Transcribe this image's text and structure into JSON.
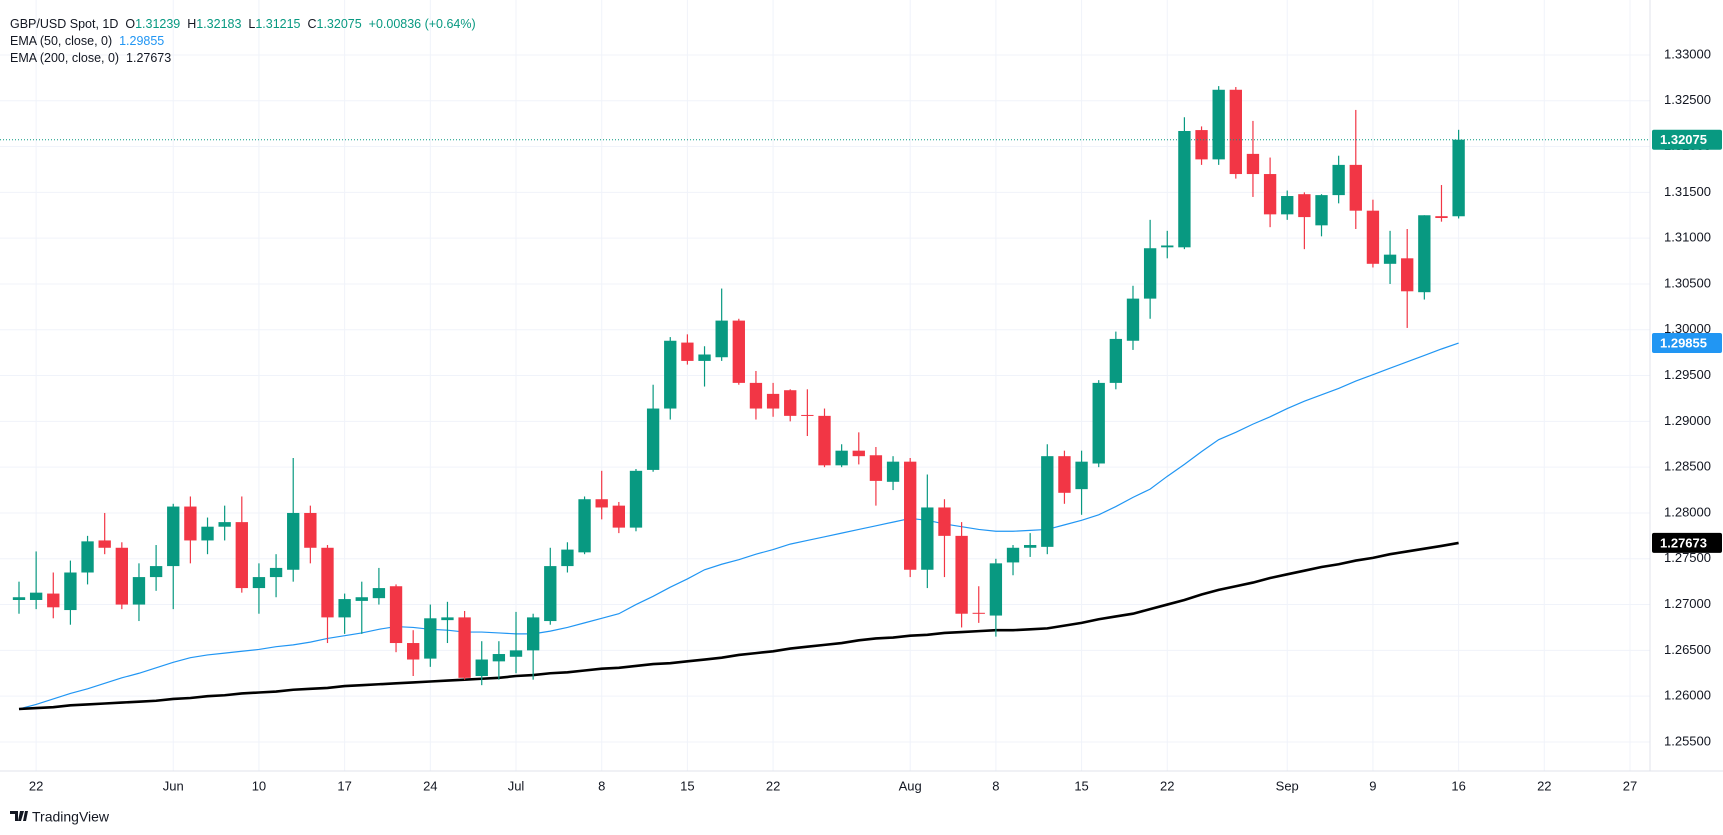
{
  "chart_data": {
    "type": "candlestick",
    "title": "GBP/USD Spot, 1D",
    "ohlc_letters": [
      "O",
      "H",
      "L",
      "C"
    ],
    "change": "+0.00836 (+0.64%)",
    "watermark": "TradingView",
    "up_color": "#089981",
    "down_color": "#f23645",
    "grid": true,
    "categories": [
      null,
      "22",
      null,
      null,
      null,
      null,
      null,
      null,
      null,
      "Jun",
      null,
      null,
      null,
      null,
      "10",
      null,
      null,
      null,
      null,
      "17",
      null,
      null,
      null,
      null,
      "24",
      null,
      null,
      null,
      null,
      "Jul",
      null,
      null,
      null,
      null,
      "8",
      null,
      null,
      null,
      null,
      "15",
      null,
      null,
      null,
      null,
      "22",
      null,
      null,
      null,
      null,
      null,
      null,
      null,
      "Aug",
      null,
      null,
      null,
      null,
      "8",
      null,
      null,
      null,
      null,
      "15",
      null,
      null,
      null,
      null,
      "22",
      null,
      null,
      null,
      null,
      null,
      null,
      "Sep",
      null,
      null,
      null,
      null,
      "9",
      null,
      null,
      null,
      null,
      "16",
      null,
      null,
      null,
      null,
      "22",
      null,
      null,
      null,
      null,
      "27"
    ],
    "open": [
      1.2705,
      1.2705,
      1.2712,
      1.2694,
      1.2735,
      1.277,
      1.2762,
      1.27,
      1.273,
      1.2742,
      1.2807,
      1.277,
      1.2785,
      1.279,
      1.2718,
      1.273,
      1.2738,
      1.28,
      1.2762,
      1.2686,
      1.2704,
      1.2707,
      1.272,
      1.2658,
      1.2641,
      1.2683,
      1.2686,
      1.2622,
      1.2638,
      1.2643,
      1.265,
      1.2682,
      1.2742,
      1.2757,
      1.2815,
      1.2808,
      1.2784,
      1.2847,
      1.2914,
      1.2986,
      1.2966,
      1.297,
      1.301,
      1.2942,
      1.293,
      1.2934,
      1.2907,
      1.2906,
      1.2852,
      1.2868,
      1.2863,
      1.2834,
      1.2856,
      1.2738,
      1.2806,
      1.2775,
      1.2691,
      1.2688,
      1.2746,
      1.2762,
      1.2763,
      1.2862,
      1.2826,
      1.2854,
      1.2942,
      1.2988,
      1.3034,
      1.309,
      1.309,
      1.3218,
      1.3186,
      1.3262,
      1.3192,
      1.317,
      1.3126,
      1.3148,
      1.3114,
      1.3147,
      1.318,
      1.313,
      1.3072,
      1.3078,
      1.3041,
      1.3124,
      1.31239,
      null,
      null,
      null,
      null,
      null,
      null,
      null,
      null,
      null,
      null
    ],
    "high": [
      1.2725,
      1.2758,
      1.2735,
      1.2748,
      1.2775,
      1.28,
      1.2768,
      1.2745,
      1.2765,
      1.281,
      1.2818,
      1.2795,
      1.2808,
      1.2818,
      1.2745,
      1.2755,
      1.286,
      1.2808,
      1.2765,
      1.2712,
      1.2725,
      1.274,
      1.2722,
      1.2672,
      1.27,
      1.2703,
      1.2693,
      1.266,
      1.266,
      1.2692,
      1.269,
      1.2762,
      1.2768,
      1.2818,
      1.2846,
      1.2812,
      1.2848,
      1.294,
      1.2992,
      1.2995,
      1.2982,
      1.3045,
      1.3012,
      1.2955,
      1.2942,
      1.2935,
      1.2935,
      1.2914,
      1.2875,
      1.2888,
      1.2872,
      1.2862,
      1.286,
      1.2842,
      1.2815,
      1.279,
      1.272,
      1.275,
      1.2765,
      1.2778,
      1.2875,
      1.2868,
      1.2868,
      1.2945,
      1.2998,
      1.3048,
      1.312,
      1.3108,
      1.3232,
      1.3222,
      1.3266,
      1.3265,
      1.3228,
      1.3188,
      1.3152,
      1.315,
      1.3148,
      1.319,
      1.324,
      1.3142,
      1.3108,
      1.311,
      1.3125,
      1.3158,
      1.32183,
      null,
      null,
      null,
      null,
      null,
      null,
      null,
      null,
      null,
      null
    ],
    "low": [
      1.269,
      1.2695,
      1.2685,
      1.2678,
      1.2722,
      1.2755,
      1.2695,
      1.2682,
      1.2715,
      1.2695,
      1.2745,
      1.2755,
      1.277,
      1.2713,
      1.269,
      1.2708,
      1.2725,
      1.2745,
      1.2658,
      1.2668,
      1.2668,
      1.27,
      1.2648,
      1.2622,
      1.2632,
      1.2658,
      1.2618,
      1.2612,
      1.2618,
      1.2625,
      1.2618,
      1.2678,
      1.2735,
      1.2755,
      1.2793,
      1.2778,
      1.278,
      1.2845,
      1.2902,
      1.2962,
      1.2938,
      1.2966,
      1.294,
      1.2902,
      1.2905,
      1.29,
      1.2884,
      1.285,
      1.285,
      1.2853,
      1.2808,
      1.2825,
      1.273,
      1.2718,
      1.273,
      1.2675,
      1.268,
      1.2665,
      1.2732,
      1.2752,
      1.2755,
      1.281,
      1.2798,
      1.285,
      1.2935,
      1.2978,
      1.3012,
      1.3078,
      1.3088,
      1.318,
      1.318,
      1.3165,
      1.3145,
      1.3112,
      1.312,
      1.3088,
      1.3102,
      1.3138,
      1.311,
      1.3068,
      1.305,
      1.3002,
      1.3033,
      1.3118,
      1.31215,
      null,
      null,
      null,
      null,
      null,
      null,
      null,
      null,
      null,
      null
    ],
    "close": [
      1.2708,
      1.2713,
      1.2697,
      1.2735,
      1.2769,
      1.2762,
      1.27,
      1.273,
      1.2742,
      1.2807,
      1.277,
      1.2785,
      1.279,
      1.2718,
      1.273,
      1.274,
      1.28,
      1.2762,
      1.2686,
      1.2706,
      1.2708,
      1.2718,
      1.2658,
      1.264,
      1.2685,
      1.2686,
      1.262,
      1.264,
      1.2646,
      1.265,
      1.2686,
      1.2742,
      1.276,
      1.2815,
      1.2806,
      1.2784,
      1.2846,
      1.2914,
      1.2988,
      1.2966,
      1.2973,
      1.301,
      1.2942,
      1.2914,
      1.2914,
      1.2906,
      1.2906,
      1.2852,
      1.2868,
      1.2862,
      1.2835,
      1.2856,
      1.2738,
      1.2806,
      1.2775,
      1.269,
      1.269,
      1.2745,
      1.2762,
      1.2765,
      1.2862,
      1.2822,
      1.2856,
      1.2942,
      1.299,
      1.3034,
      1.3089,
      1.3092,
      1.3217,
      1.3186,
      1.3262,
      1.317,
      1.317,
      1.3126,
      1.3146,
      1.3123,
      1.3147,
      1.318,
      1.313,
      1.3072,
      1.3082,
      1.3042,
      1.3125,
      1.3122,
      1.32075,
      null,
      null,
      null,
      null,
      null,
      null,
      null,
      null,
      null,
      null
    ],
    "lines": [
      {
        "name": "EMA (50, close, 0)",
        "color": "#2196f3",
        "width": 1.2,
        "values": [
          1.2586,
          1.2591,
          1.2597,
          1.2603,
          1.2608,
          1.2614,
          1.262,
          1.2625,
          1.2631,
          1.2637,
          1.2642,
          1.2645,
          1.2647,
          1.2649,
          1.2651,
          1.2654,
          1.2656,
          1.2659,
          1.2663,
          1.2666,
          1.2669,
          1.2673,
          1.2676,
          1.2675,
          1.2673,
          1.2672,
          1.267,
          1.267,
          1.2669,
          1.2668,
          1.2668,
          1.2671,
          1.2675,
          1.268,
          1.2685,
          1.269,
          1.27,
          1.2709,
          1.2719,
          1.2728,
          1.2738,
          1.2744,
          1.2749,
          1.2755,
          1.276,
          1.2766,
          1.277,
          1.2774,
          1.2778,
          1.2782,
          1.2786,
          1.279,
          1.2794,
          1.2792,
          1.2788,
          1.2785,
          1.2782,
          1.278,
          1.278,
          1.2781,
          1.2782,
          1.2787,
          1.2792,
          1.2798,
          1.2807,
          1.2817,
          1.2826,
          1.284,
          1.2853,
          1.2867,
          1.288,
          1.2888,
          1.2897,
          1.2905,
          1.2914,
          1.2922,
          1.2929,
          1.2936,
          1.2944,
          1.2951,
          1.2958,
          1.2965,
          1.2972,
          1.2979,
          1.29855,
          null,
          null,
          null,
          null,
          null,
          null,
          null,
          null,
          null,
          null
        ]
      },
      {
        "name": "EMA (200, close, 0)",
        "color": "#000000",
        "width": 2.6,
        "values": [
          1.2586,
          1.2587,
          1.2588,
          1.259,
          1.2591,
          1.2592,
          1.2593,
          1.2594,
          1.2595,
          1.2597,
          1.2598,
          1.26,
          1.2601,
          1.2603,
          1.2604,
          1.2605,
          1.2607,
          1.2608,
          1.2609,
          1.2611,
          1.2612,
          1.2613,
          1.2614,
          1.2615,
          1.2616,
          1.2617,
          1.2618,
          1.2619,
          1.262,
          1.2622,
          1.2623,
          1.2625,
          1.2626,
          1.2628,
          1.263,
          1.2631,
          1.2633,
          1.2635,
          1.2636,
          1.2638,
          1.264,
          1.2642,
          1.2645,
          1.2647,
          1.2649,
          1.2652,
          1.2654,
          1.2656,
          1.2658,
          1.2661,
          1.2663,
          1.2664,
          1.2666,
          1.2667,
          1.2669,
          1.267,
          1.2671,
          1.2672,
          1.2672,
          1.2673,
          1.2674,
          1.2677,
          1.268,
          1.2684,
          1.2687,
          1.269,
          1.2695,
          1.27,
          1.2705,
          1.2711,
          1.2716,
          1.272,
          1.2724,
          1.2729,
          1.2733,
          1.2737,
          1.2741,
          1.2744,
          1.2748,
          1.2751,
          1.2755,
          1.2758,
          1.2761,
          1.2764,
          1.27673,
          null,
          null,
          null,
          null,
          null,
          null,
          null,
          null,
          null,
          null
        ]
      }
    ],
    "ylim": [
      1.25183,
      1.336
    ],
    "yticks": [
      {
        "value": 1.255,
        "label": "1.25500"
      },
      {
        "value": 1.26,
        "label": "1.26000"
      },
      {
        "value": 1.265,
        "label": "1.26500"
      },
      {
        "value": 1.27,
        "label": "1.27000"
      },
      {
        "value": 1.275,
        "label": "1.27500"
      },
      {
        "value": 1.28,
        "label": "1.28000"
      },
      {
        "value": 1.285,
        "label": "1.28500"
      },
      {
        "value": 1.29,
        "label": "1.29000"
      },
      {
        "value": 1.295,
        "label": "1.29500"
      },
      {
        "value": 1.3,
        "label": "1.30000"
      },
      {
        "value": 1.305,
        "label": "1.30500"
      },
      {
        "value": 1.31,
        "label": "1.31000"
      },
      {
        "value": 1.315,
        "label": "1.31500"
      },
      {
        "value": 1.32,
        "label": "1.32000"
      },
      {
        "value": 1.325,
        "label": "1.32500"
      },
      {
        "value": 1.33,
        "label": "1.33000"
      }
    ]
  }
}
